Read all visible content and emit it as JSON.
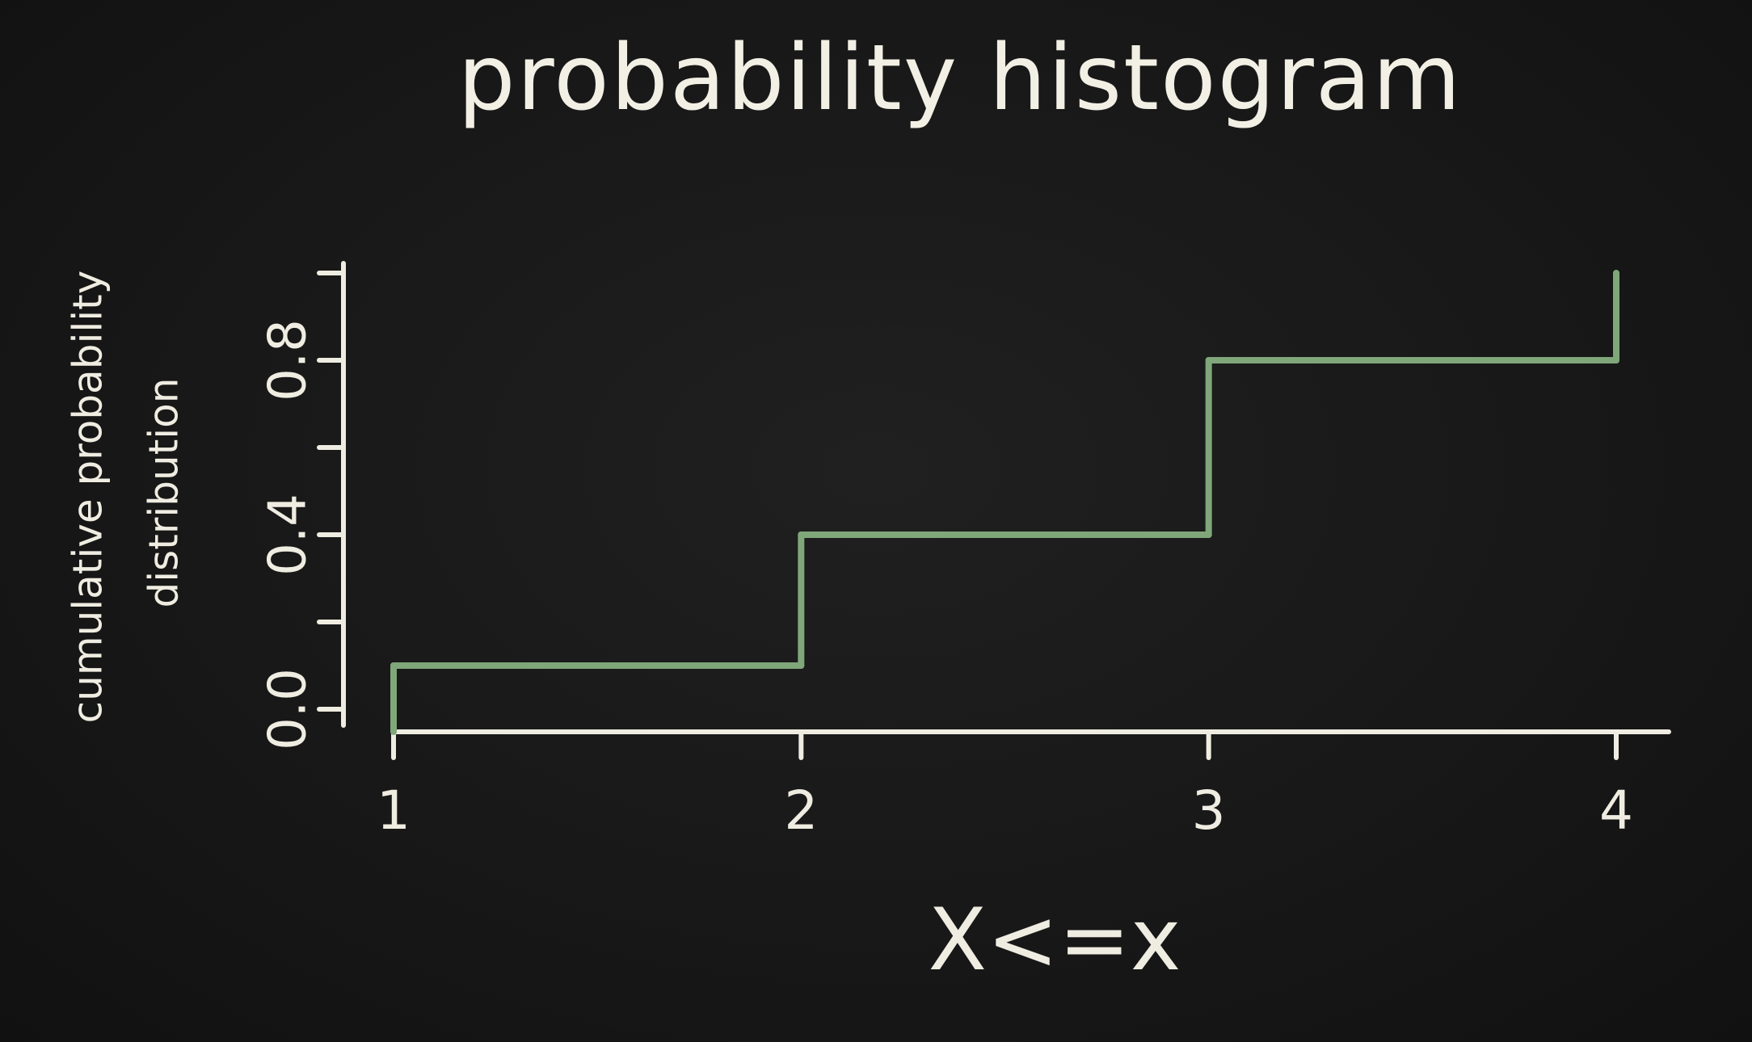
{
  "chart_data": {
    "type": "line",
    "step": true,
    "title": "probability histogram",
    "xlabel": "X<=x",
    "ylabel_lines": [
      "cumulative probability",
      "distribution"
    ],
    "x": [
      1,
      2,
      3,
      4
    ],
    "y": [
      0.1,
      0.4,
      0.8,
      1.0
    ],
    "xticks": [
      1,
      2,
      3,
      4
    ],
    "xtick_labels": [
      "1",
      "2",
      "3",
      "4"
    ],
    "yticks": [
      0.0,
      0.2,
      0.4,
      0.6,
      0.8,
      1.0
    ],
    "ytick_labels": [
      "0.0",
      "",
      "0.4",
      "",
      "0.8",
      ""
    ],
    "xlim": [
      1,
      4
    ],
    "ylim": [
      0.0,
      1.0
    ],
    "grid": false,
    "colors": {
      "background": "#141414",
      "foreground": "#efece1",
      "step_line": "#7fa77a"
    }
  }
}
